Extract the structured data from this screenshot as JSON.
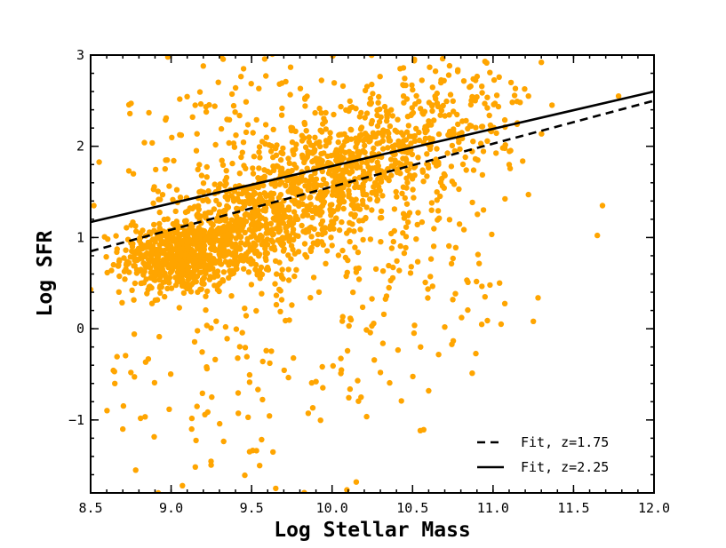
{
  "chart_data": {
    "type": "scatter",
    "xlabel": "Log Stellar Mass",
    "ylabel": "Log SFR",
    "xlim": [
      8.5,
      12.0
    ],
    "ylim": [
      -1.8,
      3.0
    ],
    "x_ticks": [
      "8.5",
      "9.0",
      "9.5",
      "10.0",
      "10.5",
      "11.0",
      "11.5",
      "12.0"
    ],
    "y_ticks": [
      "−1",
      "0",
      "1",
      "2",
      "3"
    ],
    "grid": false,
    "point_color": "#ffa500",
    "point_clusters": [
      {
        "cx": 9.05,
        "cy": 0.78,
        "sx": 0.18,
        "sy": 0.2,
        "n": 600
      },
      {
        "cx": 9.45,
        "cy": 1.1,
        "sx": 0.22,
        "sy": 0.28,
        "n": 450
      },
      {
        "cx": 9.9,
        "cy": 1.55,
        "sx": 0.25,
        "sy": 0.3,
        "n": 400
      },
      {
        "cx": 10.3,
        "cy": 1.95,
        "sx": 0.25,
        "sy": 0.3,
        "n": 300
      },
      {
        "cx": 10.75,
        "cy": 2.35,
        "sx": 0.25,
        "sy": 0.35,
        "n": 150
      },
      {
        "cx": 9.6,
        "cy": 2.2,
        "sx": 0.45,
        "sy": 0.45,
        "n": 140
      },
      {
        "cx": 10.4,
        "cy": 0.7,
        "sx": 0.45,
        "sy": 0.55,
        "n": 120
      },
      {
        "cx": 9.4,
        "cy": -0.6,
        "sx": 0.45,
        "sy": 0.6,
        "n": 80
      },
      {
        "cx": 10.0,
        "cy": 0.0,
        "sx": 0.5,
        "sy": 0.6,
        "n": 40
      }
    ],
    "points_extra": [
      {
        "x": 8.52,
        "y": 1.35
      },
      {
        "x": 8.5,
        "y": 0.43
      },
      {
        "x": 8.65,
        "y": -0.6
      },
      {
        "x": 8.7,
        "y": -1.1
      },
      {
        "x": 8.75,
        "y": -0.48
      },
      {
        "x": 8.78,
        "y": -1.55
      },
      {
        "x": 8.92,
        "y": -1.8
      },
      {
        "x": 9.07,
        "y": -1.72
      },
      {
        "x": 9.55,
        "y": -1.5
      },
      {
        "x": 9.65,
        "y": -1.75
      },
      {
        "x": 10.15,
        "y": -1.68
      },
      {
        "x": 10.18,
        "y": -0.75
      },
      {
        "x": 10.6,
        "y": -0.68
      },
      {
        "x": 11.22,
        "y": 1.47
      },
      {
        "x": 11.68,
        "y": 1.35
      },
      {
        "x": 11.78,
        "y": 2.55
      },
      {
        "x": 11.3,
        "y": 2.92
      },
      {
        "x": 11.22,
        "y": 2.55
      },
      {
        "x": 10.95,
        "y": 2.93
      },
      {
        "x": 11.1,
        "y": 1.8
      },
      {
        "x": 11.05,
        "y": 0.05
      },
      {
        "x": 10.95,
        "y": 0.35
      },
      {
        "x": 10.75,
        "y": 0.32
      },
      {
        "x": 8.98,
        "y": 2.98
      },
      {
        "x": 9.2,
        "y": 2.88
      },
      {
        "x": 9.45,
        "y": 2.85
      },
      {
        "x": 9.15,
        "y": 2.45
      },
      {
        "x": 9.9,
        "y": -0.58
      },
      {
        "x": 10.3,
        "y": -0.48
      },
      {
        "x": 10.55,
        "y": -0.2
      }
    ],
    "fits": [
      {
        "name": "Fit, z=1.75",
        "style": "dashed",
        "x": [
          8.5,
          12.0
        ],
        "y": [
          0.85,
          2.5
        ]
      },
      {
        "name": "Fit, z=2.25",
        "style": "solid",
        "x": [
          8.5,
          12.0
        ],
        "y": [
          1.17,
          2.6
        ]
      }
    ],
    "legend_position": "lower-right"
  }
}
